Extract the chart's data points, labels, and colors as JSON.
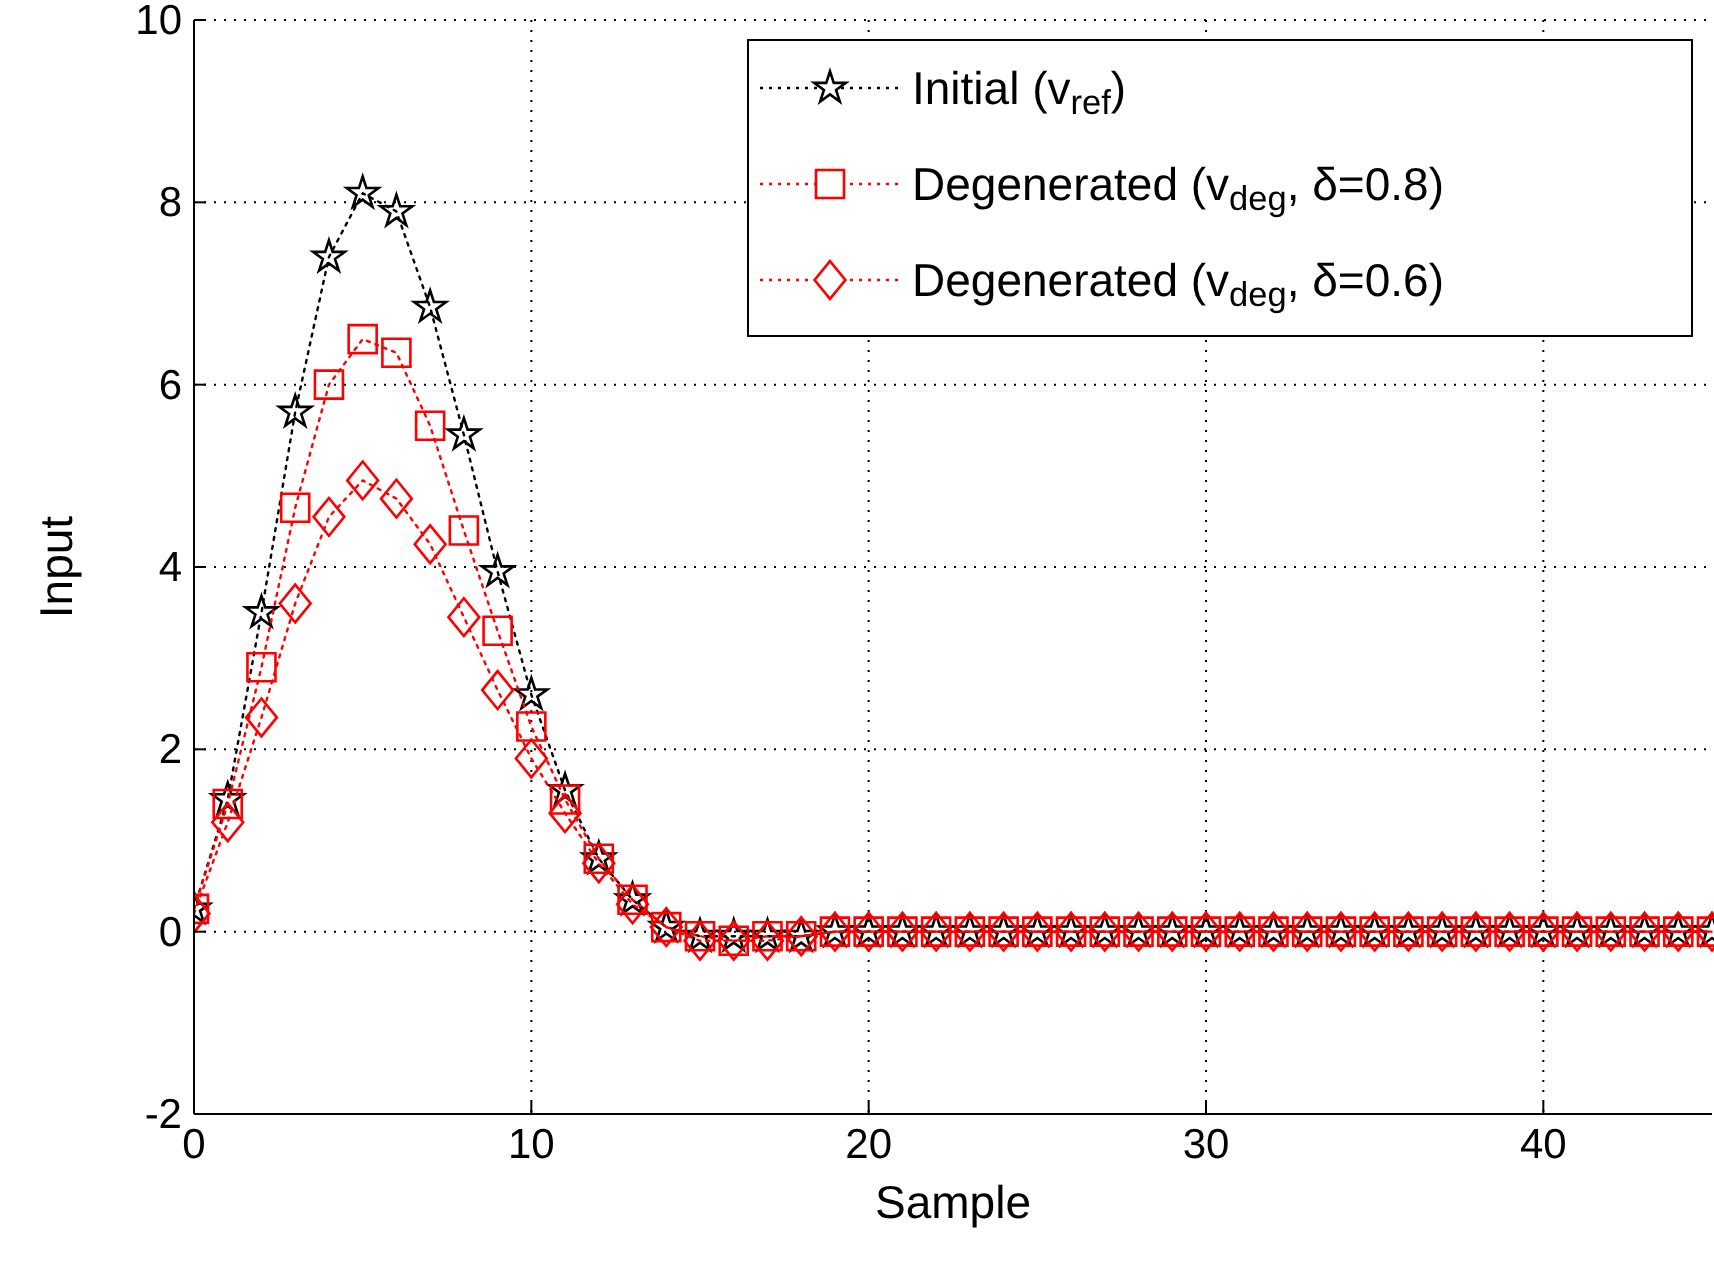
{
  "chart_data": {
    "type": "line",
    "xlabel": "Sample",
    "ylabel": "Input",
    "xlim": [
      0,
      45
    ],
    "ylim": [
      -2,
      10
    ],
    "xticks": [
      0,
      10,
      20,
      30,
      40
    ],
    "yticks": [
      -2,
      0,
      2,
      4,
      6,
      8,
      10
    ],
    "grid": true,
    "legend": "top right",
    "line_style": "dotted",
    "x": [
      0,
      1,
      2,
      3,
      4,
      5,
      6,
      7,
      8,
      9,
      10,
      11,
      12,
      13,
      14,
      15,
      16,
      17,
      18,
      19,
      20,
      21,
      22,
      23,
      24,
      25,
      26,
      27,
      28,
      29,
      30,
      31,
      32,
      33,
      34,
      35,
      36,
      37,
      38,
      39,
      40,
      41,
      42,
      43,
      44,
      45
    ],
    "series": [
      {
        "name": "Initial (v$_{ref}$)",
        "color": "#000000",
        "marker": "star",
        "values": [
          0.25,
          1.45,
          3.5,
          5.7,
          7.4,
          8.1,
          7.9,
          6.85,
          5.45,
          3.95,
          2.6,
          1.55,
          0.8,
          0.35,
          0.05,
          -0.05,
          -0.05,
          -0.05,
          -0.05,
          0,
          0,
          0,
          0,
          0,
          0,
          0,
          0,
          0,
          0,
          0,
          0,
          0,
          0,
          0,
          0,
          0,
          0,
          0,
          0,
          0,
          0,
          0,
          0,
          0,
          0,
          0
        ]
      },
      {
        "name": "Degenerated (v$_{deg}$, δ=0.8)",
        "color": "#ff0000",
        "marker": "square",
        "values": [
          0.25,
          1.4,
          2.9,
          4.65,
          6.0,
          6.5,
          6.35,
          5.55,
          4.4,
          3.3,
          2.25,
          1.45,
          0.8,
          0.35,
          0.05,
          -0.05,
          -0.1,
          -0.05,
          -0.05,
          0,
          0,
          0,
          0,
          0,
          0,
          0,
          0,
          0,
          0,
          0,
          0,
          0,
          0,
          0,
          0,
          0,
          0,
          0,
          0,
          0,
          0,
          0,
          0,
          0,
          0,
          0
        ]
      },
      {
        "name": "Degenerated (v$_{deg}$, δ=0.6)",
        "color": "#ff0000",
        "marker": "diamond",
        "values": [
          0.2,
          1.2,
          2.35,
          3.6,
          4.55,
          4.95,
          4.75,
          4.25,
          3.45,
          2.65,
          1.9,
          1.3,
          0.75,
          0.3,
          0.05,
          -0.1,
          -0.1,
          -0.1,
          -0.05,
          0,
          0,
          0,
          0,
          0,
          0,
          0,
          0,
          0,
          0,
          0,
          0,
          0,
          0,
          0,
          0,
          0,
          0,
          0,
          0,
          0,
          0,
          0,
          0,
          0,
          0,
          0
        ]
      }
    ]
  }
}
